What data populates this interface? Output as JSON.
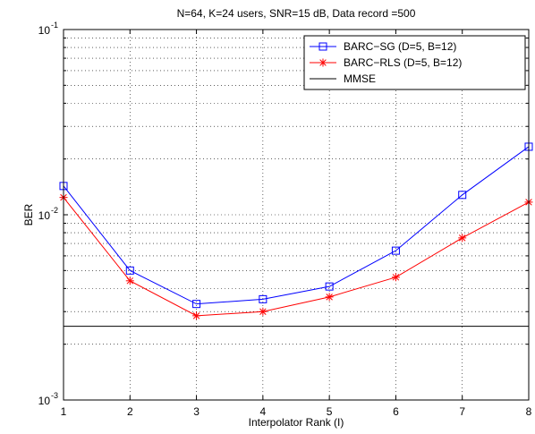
{
  "chart_data": {
    "type": "line",
    "title": "N=64, K=24 users, SNR=15 dB, Data record =500",
    "xlabel": "Interpolator Rank (I)",
    "ylabel": "BER",
    "x": [
      1,
      2,
      3,
      4,
      5,
      6,
      7,
      8
    ],
    "xlim": [
      1,
      8
    ],
    "ylim": [
      0.001,
      0.1
    ],
    "yscale": "log",
    "xticks": [
      "1",
      "2",
      "3",
      "4",
      "5",
      "6",
      "7",
      "8"
    ],
    "yticks": [
      {
        "base": "10",
        "exp": "-3",
        "value": 0.001
      },
      {
        "base": "10",
        "exp": "-2",
        "value": 0.01
      },
      {
        "base": "10",
        "exp": "-1",
        "value": 0.1
      }
    ],
    "grid": true,
    "legend_position": "top-right",
    "series": [
      {
        "name": "BARC−SG (D=5, B=12)",
        "color": "#0000ff",
        "marker": "square",
        "values": [
          0.0143,
          0.005,
          0.0033,
          0.0035,
          0.0041,
          0.0064,
          0.0128,
          0.0233
        ]
      },
      {
        "name": "BARC−RLS (D=5, B=12)",
        "color": "#ff0000",
        "marker": "asterisk",
        "values": [
          0.0124,
          0.0044,
          0.00285,
          0.003,
          0.0036,
          0.0046,
          0.0075,
          0.0117
        ]
      },
      {
        "name": "MMSE",
        "color": "#000000",
        "marker": "none",
        "values": [
          0.0025,
          0.0025,
          0.0025,
          0.0025,
          0.0025,
          0.0025,
          0.0025,
          0.0025
        ]
      }
    ]
  }
}
